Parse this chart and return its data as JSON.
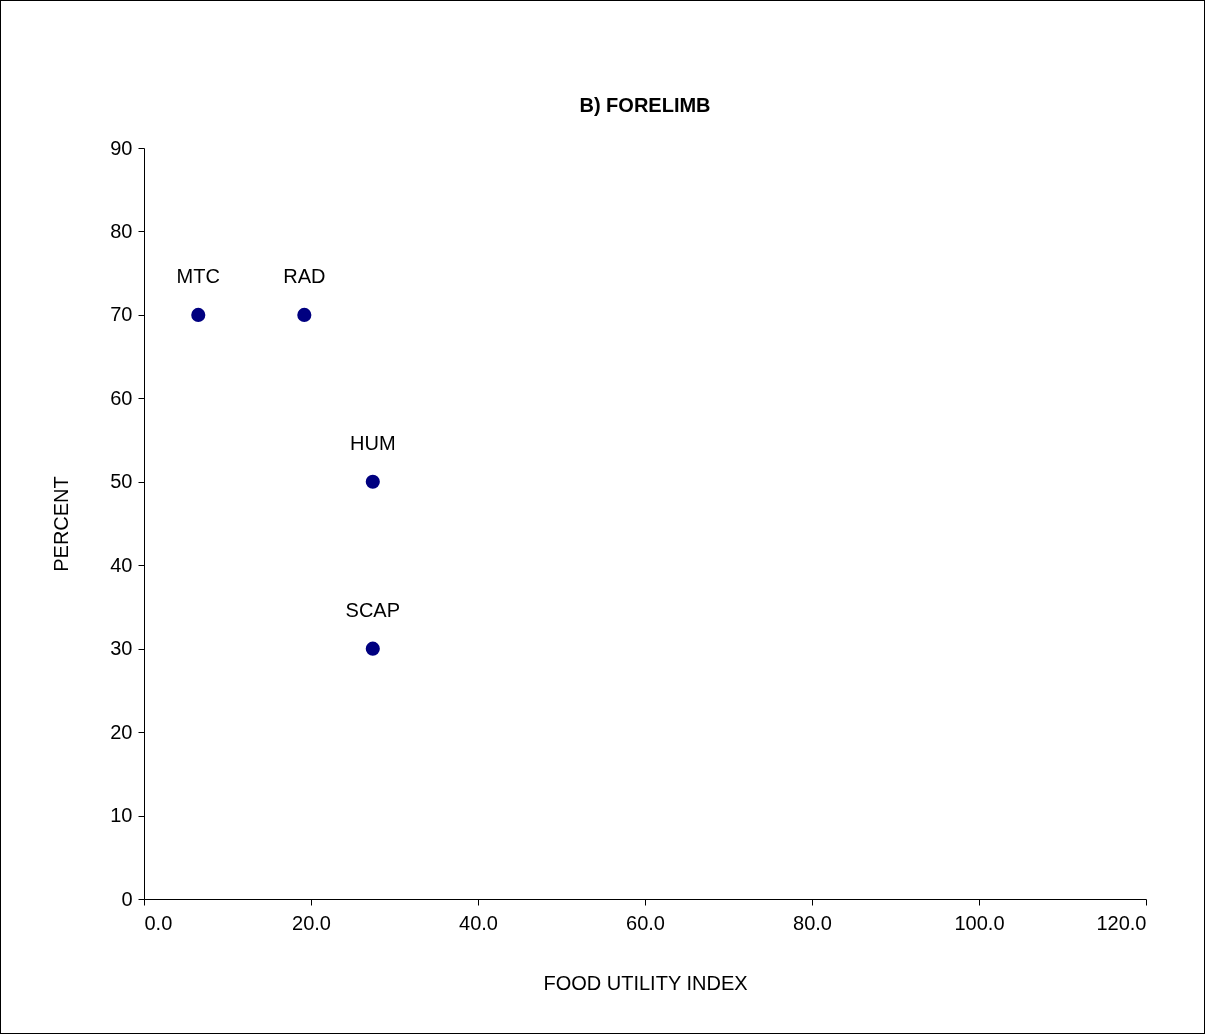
{
  "chart_data": {
    "type": "scatter",
    "title": "B) FORELIMB",
    "xlabel": "FOOD UTILITY INDEX",
    "ylabel": "PERCENT",
    "x": [
      6.5,
      19.2,
      27.4,
      27.4
    ],
    "series": [
      {
        "color": "#000080",
        "values": [
          70,
          70,
          50,
          30
        ]
      }
    ],
    "annotations": [
      {
        "text": "MTC",
        "x": 6.5,
        "y": 70
      },
      {
        "text": "RAD",
        "x": 19.2,
        "y": 70
      },
      {
        "text": "HUM",
        "x": 27.4,
        "y": 50
      },
      {
        "text": "SCAP",
        "x": 27.4,
        "y": 30
      }
    ],
    "xlim": [
      0,
      120
    ],
    "ylim": [
      0,
      90
    ],
    "xticks": [
      {
        "value": 0,
        "label": "0.0"
      },
      {
        "value": 20,
        "label": "20.0"
      },
      {
        "value": 40,
        "label": "40.0"
      },
      {
        "value": 60,
        "label": "60.0"
      },
      {
        "value": 80,
        "label": "80.0"
      },
      {
        "value": 100,
        "label": "100.0"
      },
      {
        "value": 120,
        "label": "120.0"
      }
    ],
    "yticks": [
      0,
      10,
      20,
      30,
      40,
      50,
      60,
      70,
      80,
      90
    ],
    "grid": false,
    "marker": "circle"
  }
}
